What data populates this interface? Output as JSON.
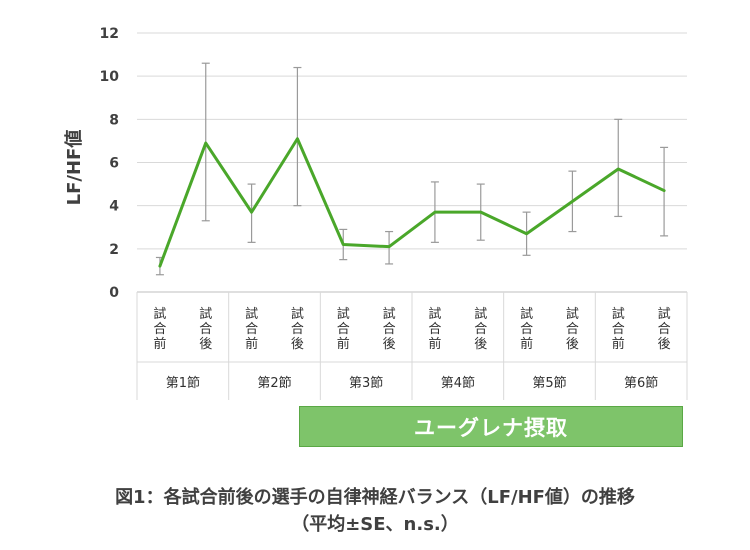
{
  "chart_data": {
    "type": "line",
    "ylabel": "LF/HF値",
    "ylim": [
      0,
      12
    ],
    "yticks": [
      "0",
      "2",
      "4",
      "6",
      "8",
      "10",
      "12"
    ],
    "grid": true,
    "categories": [
      "試合前",
      "試合後",
      "試合前",
      "試合後",
      "試合前",
      "試合後",
      "試合前",
      "試合後",
      "試合前",
      "試合後",
      "試合前",
      "試合後"
    ],
    "groups": [
      "第1節",
      "第2節",
      "第3節",
      "第4節",
      "第5節",
      "第6節"
    ],
    "series": [
      {
        "values": [
          1.2,
          6.9,
          3.7,
          7.1,
          2.2,
          2.1,
          3.7,
          3.7,
          2.7,
          4.2,
          5.7,
          4.7
        ],
        "error_low": [
          0.8,
          3.3,
          2.3,
          4.0,
          1.5,
          1.3,
          2.3,
          2.4,
          1.7,
          2.8,
          3.5,
          2.6
        ],
        "error_high": [
          1.6,
          10.6,
          5.0,
          10.4,
          2.9,
          2.8,
          5.1,
          5.0,
          3.7,
          5.6,
          8.0,
          6.7
        ],
        "color": "#4aa72a"
      }
    ],
    "annotation": "ユーグレナ摂取"
  },
  "caption": {
    "line1": "図1：各試合前後の選手の自律神経バランス（LF/HF値）の推移",
    "line2": "（平均±SE、n.s.）"
  }
}
